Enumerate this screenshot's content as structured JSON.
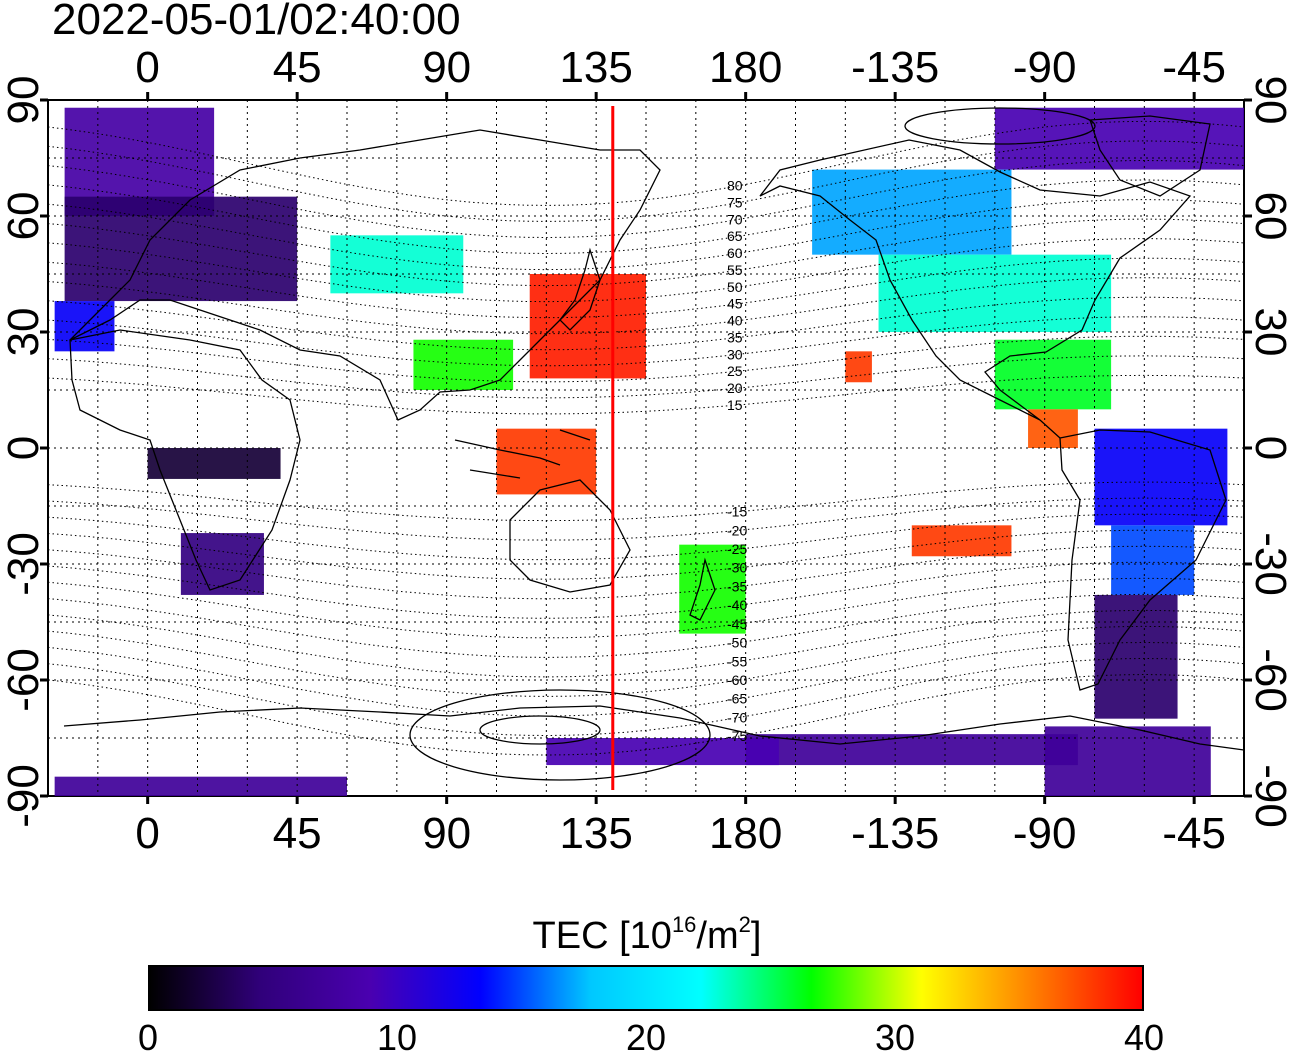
{
  "timestamp": "2022-05-01/02:40:00",
  "map": {
    "title": "",
    "projection": "equirectangular",
    "lon_range": [
      -30,
      330
    ],
    "lat_range": [
      -90,
      90
    ],
    "top_axis_labels": [
      "0",
      "45",
      "90",
      "135",
      "180",
      "-135",
      "-90",
      "-45"
    ],
    "top_axis_lons": [
      0,
      45,
      90,
      135,
      180,
      225,
      270,
      315
    ],
    "bottom_axis_labels": [
      "0",
      "45",
      "90",
      "135",
      "180",
      "-135",
      "-90",
      "-45"
    ],
    "left_axis_labels": [
      "90",
      "60",
      "30",
      "0",
      "-30",
      "-60",
      "-90"
    ],
    "left_axis_lats": [
      90,
      60,
      30,
      0,
      -30,
      -60,
      -90
    ],
    "right_axis_labels": [
      "90",
      "60",
      "30",
      "0",
      "-30",
      "-60",
      "-90"
    ],
    "grid": "dotted every 15 degrees",
    "meridian_line": {
      "lon": 140,
      "color": "#ff0000"
    },
    "magnetic_latitude_labels": [
      "80",
      "75",
      "70",
      "65",
      "60",
      "55",
      "50",
      "45",
      "40",
      "35",
      "30",
      "25",
      "20",
      "15",
      "-15",
      "-20",
      "-25",
      "-30",
      "-35",
      "-40",
      "-45",
      "-50",
      "-55",
      "-60",
      "-65",
      "-70",
      "-75"
    ],
    "magnetic_latitude_values": [
      80,
      75,
      70,
      65,
      60,
      55,
      50,
      45,
      40,
      35,
      30,
      25,
      20,
      15,
      -15,
      -20,
      -25,
      -30,
      -35,
      -40,
      -45,
      -50,
      -55,
      -60,
      -65,
      -70,
      -75
    ],
    "magnetic_label_lon": 178,
    "tec_regions": [
      {
        "lon0": -25,
        "lon1": 20,
        "lat0": 60,
        "lat1": 88,
        "tec": 8
      },
      {
        "lon0": -25,
        "lon1": 45,
        "lat0": 38,
        "lat1": 65,
        "tec": 4
      },
      {
        "lon0": -28,
        "lon1": -10,
        "lat0": 25,
        "lat1": 38,
        "tec": 13
      },
      {
        "lon0": 55,
        "lon1": 95,
        "lat0": 40,
        "lat1": 55,
        "tec": 23
      },
      {
        "lon0": 80,
        "lon1": 110,
        "lat0": 15,
        "lat1": 28,
        "tec": 27
      },
      {
        "lon0": 115,
        "lon1": 150,
        "lat0": 18,
        "lat1": 45,
        "tec": 39
      },
      {
        "lon0": 105,
        "lon1": 135,
        "lat0": -12,
        "lat1": 5,
        "tec": 38
      },
      {
        "lon0": 0,
        "lon1": 40,
        "lat0": -8,
        "lat1": 0,
        "tec": 2
      },
      {
        "lon0": 10,
        "lon1": 35,
        "lat0": -38,
        "lat1": -22,
        "tec": 5
      },
      {
        "lon0": 160,
        "lon1": 180,
        "lat0": -48,
        "lat1": -25,
        "tec": 27
      },
      {
        "lon0": 200,
        "lon1": 260,
        "lat0": 50,
        "lat1": 72,
        "tec": 17
      },
      {
        "lon0": 220,
        "lon1": 290,
        "lat0": 30,
        "lat1": 50,
        "tec": 23
      },
      {
        "lon0": 255,
        "lon1": 290,
        "lat0": 10,
        "lat1": 28,
        "tec": 26
      },
      {
        "lon0": 265,
        "lon1": 280,
        "lat0": 0,
        "lat1": 10,
        "tec": 37
      },
      {
        "lon0": 285,
        "lon1": 325,
        "lat0": -20,
        "lat1": 5,
        "tec": 13
      },
      {
        "lon0": 290,
        "lon1": 315,
        "lat0": -38,
        "lat1": -20,
        "tec": 15
      },
      {
        "lon0": 285,
        "lon1": 310,
        "lat0": -70,
        "lat1": -38,
        "tec": 4
      },
      {
        "lon0": 270,
        "lon1": 320,
        "lat0": -90,
        "lat1": -72,
        "tec": 7
      },
      {
        "lon0": 180,
        "lon1": 280,
        "lat0": -82,
        "lat1": -74,
        "tec": 7
      },
      {
        "lon0": 120,
        "lon1": 190,
        "lat0": -82,
        "lat1": -75,
        "tec": 9
      },
      {
        "lon0": -28,
        "lon1": 60,
        "lat0": -90,
        "lat1": -85,
        "tec": 7
      },
      {
        "lon0": 230,
        "lon1": 260,
        "lat0": -28,
        "lat1": -20,
        "tec": 38
      },
      {
        "lon0": 210,
        "lon1": 218,
        "lat0": 17,
        "lat1": 25,
        "tec": 38
      },
      {
        "lon0": 255,
        "lon1": 330,
        "lat0": 72,
        "lat1": 88,
        "tec": 9
      }
    ]
  },
  "colorbar": {
    "label_prefix": "TEC  [10",
    "label_exp": "16",
    "label_mid": "/m",
    "label_exp2": "2",
    "label_suffix": "]",
    "min": 0,
    "max": 40,
    "tick_labels": [
      "0",
      "10",
      "20",
      "30",
      "40"
    ],
    "tick_values": [
      0,
      10,
      20,
      30,
      40
    ],
    "stops": [
      "#000000",
      "#30007a",
      "#4a00b0",
      "#0000ff",
      "#00c8ff",
      "#00ffff",
      "#00ff00",
      "#ffff00",
      "#ff8000",
      "#ff0000"
    ]
  }
}
